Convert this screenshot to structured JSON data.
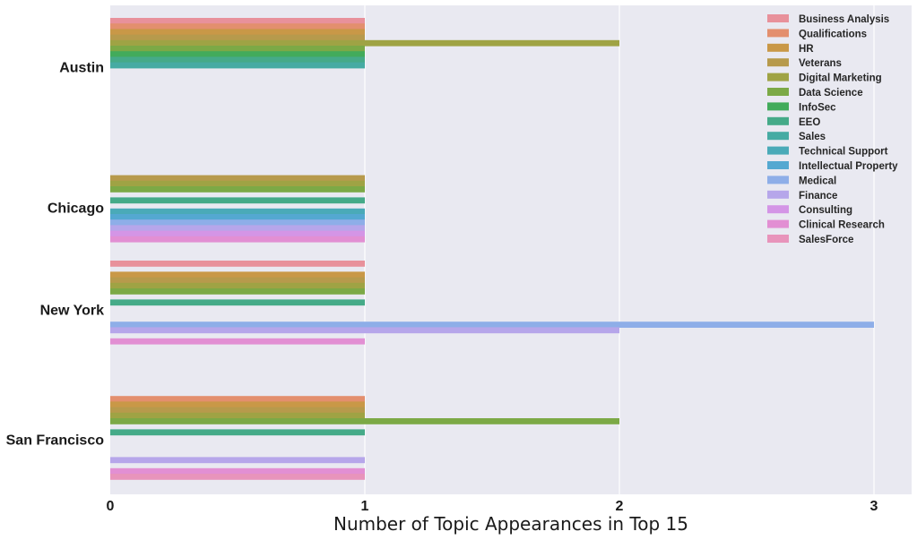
{
  "chart_data": {
    "type": "bar",
    "orientation": "horizontal",
    "categories": [
      "Austin",
      "Chicago",
      "New York",
      "San Francisco"
    ],
    "xlabel": "Number of Topic Appearances in Top 15",
    "ylabel": "",
    "xlim": [
      0,
      3.15
    ],
    "xticks": [
      0,
      1,
      2,
      3
    ],
    "grid": true,
    "legend_position": "top-right",
    "series": [
      {
        "name": "Business Analysis",
        "color": "#e8919b",
        "values": [
          1,
          0,
          1,
          0
        ]
      },
      {
        "name": "Qualifications",
        "color": "#e38f6e",
        "values": [
          1,
          0,
          0,
          1
        ]
      },
      {
        "name": "HR",
        "color": "#c99847",
        "values": [
          1,
          0,
          1,
          1
        ]
      },
      {
        "name": "Veterans",
        "color": "#b79a4c",
        "values": [
          1,
          1,
          1,
          1
        ]
      },
      {
        "name": "Digital Marketing",
        "color": "#9fa344",
        "values": [
          2,
          1,
          1,
          1
        ]
      },
      {
        "name": "Data Science",
        "color": "#7ca946",
        "values": [
          1,
          1,
          1,
          2
        ]
      },
      {
        "name": "InfoSec",
        "color": "#42ab5b",
        "values": [
          1,
          0,
          0,
          0
        ]
      },
      {
        "name": "EEO",
        "color": "#45aa88",
        "values": [
          1,
          1,
          1,
          1
        ]
      },
      {
        "name": "Sales",
        "color": "#46aba3",
        "values": [
          1,
          0,
          0,
          0
        ]
      },
      {
        "name": "Technical Support",
        "color": "#4aaab8",
        "values": [
          0,
          1,
          0,
          0
        ]
      },
      {
        "name": "Intellectual Property",
        "color": "#54a8d1",
        "values": [
          0,
          1,
          0,
          0
        ]
      },
      {
        "name": "Medical",
        "color": "#8eaee8",
        "values": [
          0,
          1,
          3,
          0
        ]
      },
      {
        "name": "Finance",
        "color": "#b6a6ea",
        "values": [
          0,
          1,
          2,
          1
        ]
      },
      {
        "name": "Consulting",
        "color": "#d495e6",
        "values": [
          0,
          1,
          0,
          0
        ]
      },
      {
        "name": "Clinical Research",
        "color": "#e28fd3",
        "values": [
          0,
          1,
          1,
          1
        ]
      },
      {
        "name": "SalesForce",
        "color": "#e894bb",
        "values": [
          0,
          0,
          0,
          1
        ]
      }
    ]
  }
}
